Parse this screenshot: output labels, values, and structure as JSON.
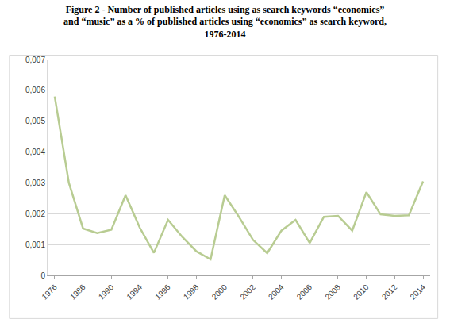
{
  "chart_data": {
    "type": "line",
    "title": "Figure 2 - Number of published articles using as search keywords “economics” and “music” as a % of published articles using “economics” as search keyword, 1976-2014",
    "categories": [
      "1976",
      null,
      "1986",
      null,
      "1990",
      null,
      "1994",
      null,
      "1996",
      null,
      "1998",
      null,
      "2000",
      null,
      "2002",
      null,
      "2004",
      null,
      "2006",
      null,
      "2008",
      null,
      "2010",
      null,
      "2012",
      null,
      "2014"
    ],
    "values": [
      0.0058,
      0.003,
      0.00152,
      0.00137,
      0.00148,
      0.0026,
      0.00155,
      0.00073,
      0.0018,
      0.00125,
      0.00078,
      0.00052,
      0.0026,
      0.0019,
      0.00115,
      0.00072,
      0.00145,
      0.0018,
      0.00105,
      0.0019,
      0.00193,
      0.00145,
      0.0027,
      0.00198,
      0.00193,
      0.00195,
      0.00305
    ],
    "color": "#b8cc92",
    "ylim": [
      0,
      0.007
    ],
    "yticks": [
      0,
      {
        "value": 0.001,
        "label": "0,001"
      },
      {
        "value": 0.002,
        "label": "0,002"
      },
      {
        "value": 0.003,
        "label": "0,003"
      },
      {
        "value": 0.004,
        "label": "0,004"
      },
      {
        "value": 0.005,
        "label": "0,005"
      },
      {
        "value": 0.006,
        "label": "0,006"
      },
      {
        "value": 0.007,
        "label": "0,007"
      }
    ],
    "grid": true
  }
}
